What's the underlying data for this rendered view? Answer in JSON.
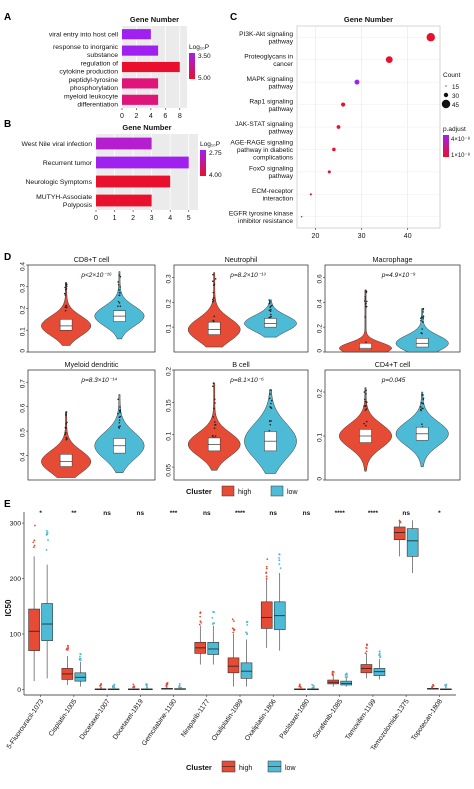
{
  "panel_letters": {
    "A": "A",
    "B": "B",
    "C": "C",
    "D": "D",
    "E": "E"
  },
  "chart_data": [
    {
      "id": "A",
      "type": "bar",
      "orientation": "horizontal",
      "title": "Gene Number",
      "categories": [
        "viral entry into host cell",
        "response to inorganic substance",
        "regulation of cytokine production",
        "peptidyl-tyrosine phosphorylation",
        "myeloid leukocyte differentiation"
      ],
      "category_lines": [
        [
          "viral entry into host cell"
        ],
        [
          "response to inorganic",
          "substance"
        ],
        [
          "regulation of",
          "cytokine production"
        ],
        [
          "peptidyl-tyrosine",
          "phosphorylation"
        ],
        [
          "myeloid leukocyte",
          "differentiation"
        ]
      ],
      "values": [
        4,
        5,
        8,
        5,
        5
      ],
      "colors": [
        "#a020f0",
        "#a020f0",
        "#e8102c",
        "#e0157a",
        "#e0157a"
      ],
      "xlim": [
        0,
        9
      ],
      "xticks": [
        0,
        2,
        4,
        6,
        8
      ],
      "legend": {
        "title": "Log₁₀P",
        "labels": [
          "3.50",
          "5.00"
        ]
      }
    },
    {
      "id": "B",
      "type": "bar",
      "orientation": "horizontal",
      "title": "Gene Number",
      "categories": [
        "West Nile viral infection",
        "Recurrent tumor",
        "Neurologic Symptoms",
        "MUTYH-Associate Polyposis"
      ],
      "category_lines": [
        [
          "West Nile viral infection"
        ],
        [
          "Recurrent tumor"
        ],
        [
          "Neurologic Symptoms"
        ],
        [
          "MUTYH-Associate",
          "Polyposis"
        ]
      ],
      "values": [
        3,
        5,
        4,
        3
      ],
      "colors": [
        "#b51ecf",
        "#a020f0",
        "#e8102c",
        "#e8102c"
      ],
      "xlim": [
        0,
        5.5
      ],
      "xticks": [
        0,
        1,
        2,
        3,
        4,
        5
      ],
      "legend": {
        "title": "Log₁₀P",
        "labels": [
          "2.75",
          "4.00"
        ]
      }
    },
    {
      "id": "C",
      "type": "scatter",
      "title": "Gene Number",
      "categories": [
        "PI3K-Akt signaling pathway",
        "Proteoglycans in cancer",
        "MAPK signaling pathway",
        "Rap1 signaling pathway",
        "JAK-STAT signaling pathway",
        "AGE-RAGE signaling pathway in diabetic complications",
        "FoxO signaling pathway",
        "ECM-receptor interaction",
        "EGFR tyrosine kinase inhibitor resistance"
      ],
      "category_lines": [
        [
          "PI3K-Akt signaling",
          "pathway"
        ],
        [
          "Proteoglycans in",
          "cancer"
        ],
        [
          "MAPK signaling",
          "pathway"
        ],
        [
          "Rap1 signaling",
          "pathway"
        ],
        [
          "JAK-STAT signaling",
          "pathway"
        ],
        [
          "AGE-RAGE signaling",
          "pathway in diabetic",
          "complications"
        ],
        [
          "FoxO signaling",
          "pathway"
        ],
        [
          "ECM-receptor",
          "interaction"
        ],
        [
          "EGFR tyrosine kinase",
          "inhibitor resistance"
        ]
      ],
      "x": [
        45,
        36,
        29,
        26,
        25,
        24,
        23,
        19,
        17
      ],
      "count": [
        45,
        38,
        30,
        27,
        25,
        24,
        22,
        18,
        15
      ],
      "colors": [
        "#e8102c",
        "#e8102c",
        "#a020f0",
        "#e8102c",
        "#e8102c",
        "#e8102c",
        "#e8102c",
        "#e8102c",
        "#e8102c"
      ],
      "xlim": [
        16,
        47
      ],
      "xticks": [
        20,
        30,
        40
      ],
      "legend": {
        "count_title": "Count",
        "count_labels": [
          "15",
          "30",
          "45"
        ],
        "color_title": "p.adjust",
        "color_labels": [
          "4×10⁻⁸",
          "1×10⁻⁸"
        ]
      }
    },
    {
      "id": "D",
      "type": "violin",
      "panels": [
        {
          "title": "CD8+T cell",
          "p": "p<2×10⁻¹⁶",
          "ylim": [
            0,
            0.4
          ],
          "yticks": [
            0,
            0.1,
            0.2,
            0.3,
            0.4
          ],
          "high": {
            "q1": 0.1,
            "median": 0.12,
            "q3": 0.15,
            "min": 0.03,
            "max": 0.32
          },
          "low": {
            "q1": 0.14,
            "median": 0.165,
            "q3": 0.19,
            "min": 0.06,
            "max": 0.37
          }
        },
        {
          "title": "Neutrophil",
          "p": "p=8.2×10⁻¹³",
          "ylim": [
            0,
            0.35
          ],
          "yticks": [
            0.1,
            0.2,
            0.3
          ],
          "high": {
            "q1": 0.07,
            "median": 0.09,
            "q3": 0.12,
            "min": 0.02,
            "max": 0.32
          },
          "low": {
            "q1": 0.1,
            "median": 0.115,
            "q3": 0.135,
            "min": 0.06,
            "max": 0.21
          }
        },
        {
          "title": "Macrophage",
          "p": "p=4.9×10⁻⁹",
          "ylim": [
            0,
            0.7
          ],
          "yticks": [
            0,
            0.2,
            0.4,
            0.6
          ],
          "high": {
            "q1": 0.02,
            "median": 0.03,
            "q3": 0.07,
            "min": 0.0,
            "max": 0.5
          },
          "low": {
            "q1": 0.04,
            "median": 0.07,
            "q3": 0.11,
            "min": 0.0,
            "max": 0.35
          }
        },
        {
          "title": "Myeloid dendritic",
          "p": "p=8.3×10⁻¹⁴",
          "ylim": [
            0.3,
            0.75
          ],
          "yticks": [
            0.4,
            0.5,
            0.6,
            0.7
          ],
          "high": {
            "q1": 0.355,
            "median": 0.375,
            "q3": 0.405,
            "min": 0.31,
            "max": 0.58
          },
          "low": {
            "q1": 0.41,
            "median": 0.44,
            "q3": 0.47,
            "min": 0.33,
            "max": 0.65
          }
        },
        {
          "title": "B cell",
          "p": "p=8.1×10⁻⁶",
          "ylim": [
            0.03,
            0.2
          ],
          "yticks": [
            0.05,
            0.1,
            0.15,
            0.2
          ],
          "high": {
            "q1": 0.075,
            "median": 0.085,
            "q3": 0.095,
            "min": 0.045,
            "max": 0.18
          },
          "low": {
            "q1": 0.075,
            "median": 0.09,
            "q3": 0.105,
            "min": 0.04,
            "max": 0.17
          }
        },
        {
          "title": "CD4+T cell",
          "p": "p=0.045",
          "ylim": [
            0,
            0.25
          ],
          "yticks": [
            0.0,
            0.1,
            0.2
          ],
          "high": {
            "q1": 0.085,
            "median": 0.1,
            "q3": 0.115,
            "min": 0.02,
            "max": 0.21
          },
          "low": {
            "q1": 0.09,
            "median": 0.105,
            "q3": 0.12,
            "min": 0.03,
            "max": 0.2
          }
        }
      ],
      "legend": {
        "title": "Cluster",
        "labels": [
          "high",
          "low"
        ]
      },
      "colors": {
        "high": "#e64b35",
        "low": "#4dbbd5"
      }
    },
    {
      "id": "E",
      "type": "box",
      "ylabel": "IC50",
      "ylim": [
        -10,
        320
      ],
      "yticks": [
        0,
        100,
        200,
        300
      ],
      "categories": [
        "5-Fluorouracil-1073",
        "Cisplatin-1005",
        "Docetaxel-1007",
        "Docetaxel-1819",
        "Gemcitabine-1190",
        "Niraparib-1177",
        "Oxaliplatin-1089",
        "Oxaliplatin-1806",
        "Paclitaxel-1080",
        "Sorafenib-1085",
        "Tamoxifen-1199",
        "Temozolomide-1375",
        "Topotecan-1808"
      ],
      "significance": [
        "*",
        "**",
        "ns",
        "ns",
        "***",
        "ns",
        "****",
        "ns",
        "ns",
        "****",
        "****",
        "ns",
        "*"
      ],
      "high": [
        {
          "min": 15,
          "q1": 70,
          "median": 105,
          "q3": 145,
          "max": 240
        },
        {
          "min": 8,
          "q1": 18,
          "median": 28,
          "q3": 38,
          "max": 60
        },
        {
          "min": 0,
          "q1": 0,
          "median": 0.5,
          "q3": 1,
          "max": 2
        },
        {
          "min": 0,
          "q1": 0,
          "median": 0.5,
          "q3": 1,
          "max": 2
        },
        {
          "min": 0,
          "q1": 0.5,
          "median": 1,
          "q3": 2,
          "max": 4
        },
        {
          "min": 45,
          "q1": 65,
          "median": 75,
          "q3": 85,
          "max": 115
        },
        {
          "min": 5,
          "q1": 30,
          "median": 42,
          "q3": 57,
          "max": 100
        },
        {
          "min": 75,
          "q1": 110,
          "median": 130,
          "q3": 158,
          "max": 200
        },
        {
          "min": 0,
          "q1": 0,
          "median": 0.5,
          "q3": 1,
          "max": 2
        },
        {
          "min": 5,
          "q1": 10,
          "median": 13,
          "q3": 17,
          "max": 25
        },
        {
          "min": 20,
          "q1": 30,
          "median": 38,
          "q3": 45,
          "max": 65
        },
        {
          "min": 240,
          "q1": 270,
          "median": 283,
          "q3": 293,
          "max": 300
        },
        {
          "min": 0,
          "q1": 0.5,
          "median": 1,
          "q3": 2,
          "max": 3
        }
      ],
      "low": [
        {
          "min": 20,
          "q1": 88,
          "median": 118,
          "q3": 155,
          "max": 225
        },
        {
          "min": 5,
          "q1": 15,
          "median": 22,
          "q3": 30,
          "max": 50
        },
        {
          "min": 0,
          "q1": 0,
          "median": 0.5,
          "q3": 1,
          "max": 2
        },
        {
          "min": 0,
          "q1": 0,
          "median": 0.5,
          "q3": 1,
          "max": 2
        },
        {
          "min": 0,
          "q1": 0.3,
          "median": 0.7,
          "q3": 1.5,
          "max": 3
        },
        {
          "min": 45,
          "q1": 63,
          "median": 73,
          "q3": 85,
          "max": 115
        },
        {
          "min": 5,
          "q1": 20,
          "median": 33,
          "q3": 48,
          "max": 90
        },
        {
          "min": 70,
          "q1": 108,
          "median": 133,
          "q3": 158,
          "max": 210
        },
        {
          "min": 0,
          "q1": 0,
          "median": 0.5,
          "q3": 1,
          "max": 2
        },
        {
          "min": 5,
          "q1": 8,
          "median": 11,
          "q3": 15,
          "max": 22
        },
        {
          "min": 18,
          "q1": 25,
          "median": 32,
          "q3": 38,
          "max": 55
        },
        {
          "min": 210,
          "q1": 240,
          "median": 268,
          "q3": 290,
          "max": 305
        },
        {
          "min": 0,
          "q1": 0.3,
          "median": 0.5,
          "q3": 1,
          "max": 2
        }
      ],
      "legend": {
        "title": "Cluster",
        "labels": [
          "high",
          "low"
        ]
      },
      "colors": {
        "high": "#e64b35",
        "low": "#4dbbd5"
      }
    }
  ]
}
